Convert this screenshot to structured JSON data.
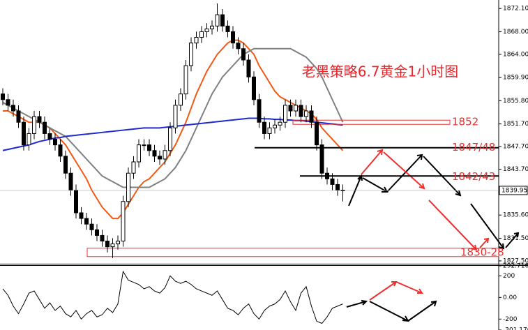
{
  "chart_data": [
    {
      "type": "candlestick",
      "title": "老黑策略6.7黄金1小时图",
      "open": [
        1857,
        1856,
        1855,
        1854,
        1852,
        1848,
        1850,
        1853,
        1852,
        1850,
        1849,
        1848,
        1846,
        1843,
        1840,
        1836,
        1835,
        1834,
        1833,
        1832,
        1831,
        1830,
        1830.5,
        1831,
        1838,
        1843,
        1845,
        1848,
        1848,
        1847,
        1846,
        1845.5,
        1847,
        1851,
        1855,
        1857,
        1862,
        1866,
        1867,
        1868,
        1868.5,
        1869,
        1871,
        1869,
        1868,
        1866,
        1865,
        1863,
        1860,
        1856,
        1852,
        1850,
        1851,
        1851.5,
        1852,
        1855,
        1854,
        1855,
        1853,
        1854,
        1852,
        1848,
        1843,
        1842,
        1841,
        1840
      ],
      "high": [
        1858,
        1857,
        1856,
        1855,
        1853,
        1851,
        1854,
        1854,
        1853,
        1851,
        1850,
        1849,
        1847,
        1844,
        1841,
        1837,
        1836,
        1835,
        1834,
        1833,
        1832,
        1831.5,
        1832,
        1839,
        1844,
        1846,
        1849,
        1849,
        1849,
        1848,
        1847,
        1848,
        1852,
        1856,
        1858,
        1863,
        1867,
        1868,
        1869,
        1869.5,
        1870,
        1873,
        1872,
        1870,
        1869,
        1867,
        1866,
        1864,
        1861,
        1857,
        1853,
        1852,
        1852.5,
        1853,
        1856,
        1856,
        1856,
        1856,
        1855,
        1855,
        1853,
        1849,
        1844,
        1843,
        1842,
        1841
      ],
      "low": [
        1855,
        1854,
        1853,
        1851,
        1847,
        1847,
        1849,
        1851,
        1849,
        1848,
        1847,
        1845,
        1842,
        1839,
        1835,
        1834,
        1833,
        1832,
        1831,
        1830,
        1829,
        1828,
        1829.5,
        1830,
        1837,
        1842,
        1844,
        1847,
        1846,
        1845,
        1844.5,
        1844.5,
        1846,
        1850,
        1854,
        1856,
        1861,
        1865,
        1866,
        1867,
        1867.5,
        1868,
        1868,
        1867,
        1865,
        1864,
        1862,
        1859,
        1855,
        1851,
        1849,
        1849,
        1850,
        1850.5,
        1851,
        1853,
        1853,
        1852,
        1852,
        1851,
        1847,
        1842,
        1841,
        1840,
        1839,
        1838
      ],
      "close": [
        1856,
        1855,
        1854,
        1852,
        1848,
        1850,
        1853,
        1852,
        1850,
        1849,
        1848,
        1846,
        1843,
        1840,
        1836,
        1835,
        1834,
        1833,
        1832,
        1831,
        1830,
        1830.5,
        1831,
        1838,
        1843,
        1845,
        1848,
        1848,
        1847,
        1846,
        1845.5,
        1847,
        1851,
        1855,
        1857,
        1862,
        1866,
        1867,
        1868,
        1868.5,
        1869,
        1871,
        1869,
        1868,
        1866,
        1865,
        1863,
        1860,
        1856,
        1852,
        1850,
        1851,
        1851.5,
        1852,
        1855,
        1854,
        1855,
        1853,
        1854,
        1852,
        1848,
        1843,
        1842,
        1841,
        1840,
        1839.95
      ],
      "up_color": "#ffffff",
      "down_color": "#000000",
      "lines": [
        {
          "color": "#f05a14",
          "values": [
            1854,
            1854,
            1853.5,
            1853,
            1852.5,
            1852,
            1852,
            1852,
            1851.5,
            1851,
            1850,
            1849,
            1848,
            1846.5,
            1845,
            1843.5,
            1842,
            1840,
            1838.5,
            1837,
            1836,
            1835,
            1835,
            1836,
            1837.5,
            1839,
            1840.5,
            1841.5,
            1842,
            1843,
            1844,
            1845,
            1846.5,
            1848,
            1850,
            1852,
            1854.5,
            1857,
            1859,
            1861,
            1862.5,
            1864,
            1865,
            1866,
            1866.5,
            1866.5,
            1866,
            1865,
            1864,
            1862,
            1860.5,
            1859,
            1857.5,
            1856.5,
            1856,
            1855.5,
            1855,
            1854.5,
            1854,
            1853.5,
            1852.5,
            1851,
            1850,
            1849,
            1848,
            1847
          ]
        },
        {
          "color": "#808080",
          "values": [
            1855.5,
            1855,
            1854.5,
            1854,
            1853.5,
            1853,
            1852.5,
            1852,
            1851.5,
            1851,
            1850.5,
            1850,
            1849.5,
            1848.5,
            1847.5,
            1846.5,
            1845.5,
            1844.5,
            1843.5,
            1842.5,
            1842,
            1841.5,
            1841,
            1840.5,
            1840.5,
            1840.5,
            1840.5,
            1840.5,
            1840.5,
            1841,
            1841.5,
            1842,
            1843,
            1844,
            1845.5,
            1847,
            1849,
            1851,
            1853,
            1855,
            1857,
            1858.5,
            1860,
            1861,
            1862,
            1863,
            1864,
            1864.5,
            1865,
            1865,
            1865,
            1865,
            1865,
            1865,
            1865,
            1865,
            1864.5,
            1864,
            1863.5,
            1862.5,
            1861.5,
            1860,
            1858,
            1856,
            1854,
            1852
          ]
        },
        {
          "color": "#1e2ad0",
          "values": [
            1847,
            1847.2,
            1847.4,
            1847.6,
            1847.8,
            1848,
            1848.3,
            1848.6,
            1848.8,
            1849,
            1849.2,
            1849.3,
            1849.5,
            1849.6,
            1849.7,
            1849.8,
            1849.9,
            1850,
            1850.1,
            1850.2,
            1850.3,
            1850.4,
            1850.5,
            1850.6,
            1850.7,
            1850.8,
            1850.9,
            1851,
            1851,
            1851,
            1851,
            1851.1,
            1851.2,
            1851.3,
            1851.4,
            1851.5,
            1851.6,
            1851.7,
            1851.8,
            1851.9,
            1852,
            1852.1,
            1852.2,
            1852.3,
            1852.4,
            1852.5,
            1852.6,
            1852.7,
            1852.7,
            1852.7,
            1852.6,
            1852.6,
            1852.5,
            1852.5,
            1852.4,
            1852.4,
            1852.3,
            1852.3,
            1852.2,
            1852.1,
            1852,
            1851.9,
            1851.8,
            1851.7,
            1851.6,
            1851.5
          ]
        }
      ],
      "ylim": [
        1827.0,
        1873.6
      ],
      "yticks": [
        {
          "value": 1872.1,
          "label": "1872.10"
        },
        {
          "value": 1868,
          "label": "1868.00"
        },
        {
          "value": 1864,
          "label": "1864.00"
        },
        {
          "value": 1859.9,
          "label": "1859.90"
        },
        {
          "value": 1855.8,
          "label": "1855.80"
        },
        {
          "value": 1851.7,
          "label": "1851.70"
        },
        {
          "value": 1847.7,
          "label": "1847.70"
        },
        {
          "value": 1843.7,
          "label": "1843.70"
        },
        {
          "value": 1835.6,
          "label": "1835.60"
        },
        {
          "value": 1831.5,
          "label": "1831.50"
        },
        {
          "value": 1827.5,
          "label": "1827.50"
        }
      ],
      "last_price": 1839.95,
      "levels": [
        {
          "value": 1852,
          "label": "1852",
          "style": "box"
        },
        {
          "value": 1847.5,
          "label": "1847/48",
          "style": "line"
        },
        {
          "value": 1842.5,
          "label": "1842/43",
          "style": "line"
        },
        {
          "value": 1829,
          "label": "1830-28",
          "style": "box"
        }
      ]
    },
    {
      "type": "line",
      "color": "#000000",
      "values": [
        80,
        20,
        -80,
        -150,
        -60,
        40,
        60,
        -20,
        -100,
        -50,
        -120,
        -80,
        -150,
        -180,
        -120,
        -200,
        -150,
        -120,
        -180,
        -160,
        -100,
        -140,
        -60,
        240,
        160,
        140,
        120,
        80,
        100,
        60,
        40,
        90,
        200,
        150,
        130,
        150,
        120,
        80,
        60,
        40,
        20,
        60,
        -20,
        -100,
        -120,
        -160,
        -100,
        -60,
        -150,
        -200,
        -120,
        -80,
        -60,
        -20,
        60,
        -40,
        -120,
        40,
        100,
        -80,
        -220,
        -240,
        -180,
        -100,
        -80,
        -60
      ],
      "ylim": [
        -301.17,
        292.7165
      ],
      "yticks": [
        292.7165,
        200,
        {
          "value": 0,
          "label": "0.00"
        },
        -200,
        {
          "value": -301.17,
          "label": "-301.170"
        }
      ]
    }
  ]
}
